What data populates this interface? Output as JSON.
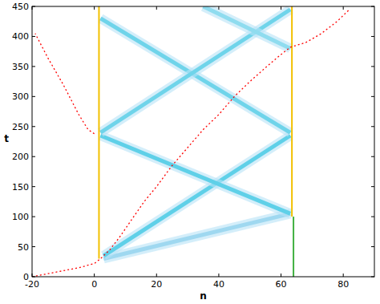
{
  "chart_data": {
    "type": "line",
    "x_label": "n",
    "y_label": "t",
    "xlim": [
      -20,
      90
    ],
    "ylim": [
      0,
      450
    ],
    "xticks": [
      -20,
      0,
      20,
      40,
      60,
      80
    ],
    "yticks": [
      0,
      50,
      100,
      150,
      200,
      250,
      300,
      350,
      400,
      450
    ],
    "series": [
      {
        "color": "#9fd8f0",
        "line_style": "solid",
        "x": [
          3,
          63
        ],
        "values": [
          30,
          105
        ]
      },
      {
        "color": "#5fd0e8",
        "line_style": "solid",
        "x": [
          3,
          63
        ],
        "values": [
          35,
          235
        ]
      },
      {
        "color": "#5fd0e8",
        "line_style": "solid",
        "x": [
          2,
          63
        ],
        "values": [
          235,
          105
        ]
      },
      {
        "color": "#6fd4ea",
        "line_style": "solid",
        "x": [
          63,
          2
        ],
        "values": [
          240,
          430
        ]
      },
      {
        "color": "#6fd4ea",
        "line_style": "solid",
        "x": [
          2,
          63
        ],
        "values": [
          240,
          445
        ]
      },
      {
        "color": "#8fdcef",
        "line_style": "solid",
        "x": [
          63,
          35
        ],
        "values": [
          380,
          450
        ]
      },
      {
        "color": "#f2c000",
        "line_style": "solid",
        "x": [
          1.5,
          1.5
        ],
        "values": [
          30,
          450
        ]
      },
      {
        "color": "#f2c000",
        "line_style": "solid",
        "x": [
          63.5,
          63.5
        ],
        "values": [
          100,
          450
        ]
      },
      {
        "color": "#40b040",
        "line_style": "solid",
        "x": [
          64,
          64
        ],
        "values": [
          0,
          100
        ]
      },
      {
        "color": "#ff0000",
        "line_style": "dashed",
        "x": [
          -20,
          -10,
          -5,
          0,
          2,
          5,
          8,
          12,
          16,
          20,
          25,
          30,
          35,
          40,
          45,
          50,
          55,
          60,
          63,
          68,
          73,
          78,
          82
        ],
        "values": [
          0,
          10,
          15,
          22,
          30,
          45,
          65,
          95,
          125,
          150,
          185,
          215,
          245,
          270,
          300,
          325,
          348,
          370,
          382,
          390,
          405,
          425,
          445
        ]
      },
      {
        "color": "#ff0000",
        "line_style": "dashed",
        "x": [
          0,
          -2,
          -5,
          -10,
          -15,
          -19
        ],
        "values": [
          238,
          245,
          270,
          320,
          365,
          405
        ]
      }
    ]
  }
}
